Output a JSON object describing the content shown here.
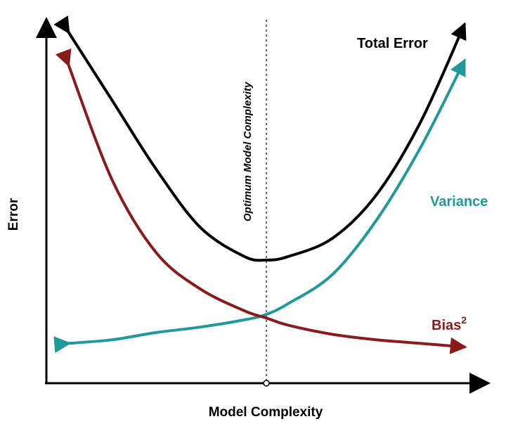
{
  "chart_data": {
    "type": "line",
    "title": "",
    "xlabel": "Model Complexity",
    "ylabel": "Error",
    "xlim": [
      0,
      10
    ],
    "ylim": [
      0,
      10
    ],
    "grid": false,
    "legend": "none",
    "optimum_label": "Optimum Model Complexity",
    "optimum_x": 5,
    "series": [
      {
        "name": "Total Error",
        "color": "#000000",
        "x": [
          0.5,
          1.5,
          2.5,
          3.5,
          4.5,
          5.0,
          5.5,
          6.5,
          7.5,
          8.5,
          9.5
        ],
        "values": [
          9.7,
          7.8,
          5.9,
          4.3,
          3.5,
          3.4,
          3.5,
          4.0,
          5.2,
          7.2,
          9.9
        ]
      },
      {
        "name": "Variance",
        "color": "#1f9999",
        "x": [
          0.5,
          1.5,
          2.5,
          3.5,
          4.5,
          5.0,
          5.5,
          6.5,
          7.5,
          8.5,
          9.5
        ],
        "values": [
          1.1,
          1.2,
          1.4,
          1.55,
          1.75,
          1.9,
          2.2,
          3.0,
          4.5,
          6.5,
          8.9
        ]
      },
      {
        "name": "Bias",
        "name_sup": "2",
        "color": "#8b1a1a",
        "x": [
          0.5,
          1.5,
          2.5,
          3.5,
          4.5,
          5.0,
          5.5,
          6.5,
          7.5,
          8.5,
          9.5
        ],
        "values": [
          8.8,
          5.6,
          3.6,
          2.6,
          2.0,
          1.8,
          1.6,
          1.35,
          1.2,
          1.1,
          1.0
        ]
      }
    ]
  }
}
